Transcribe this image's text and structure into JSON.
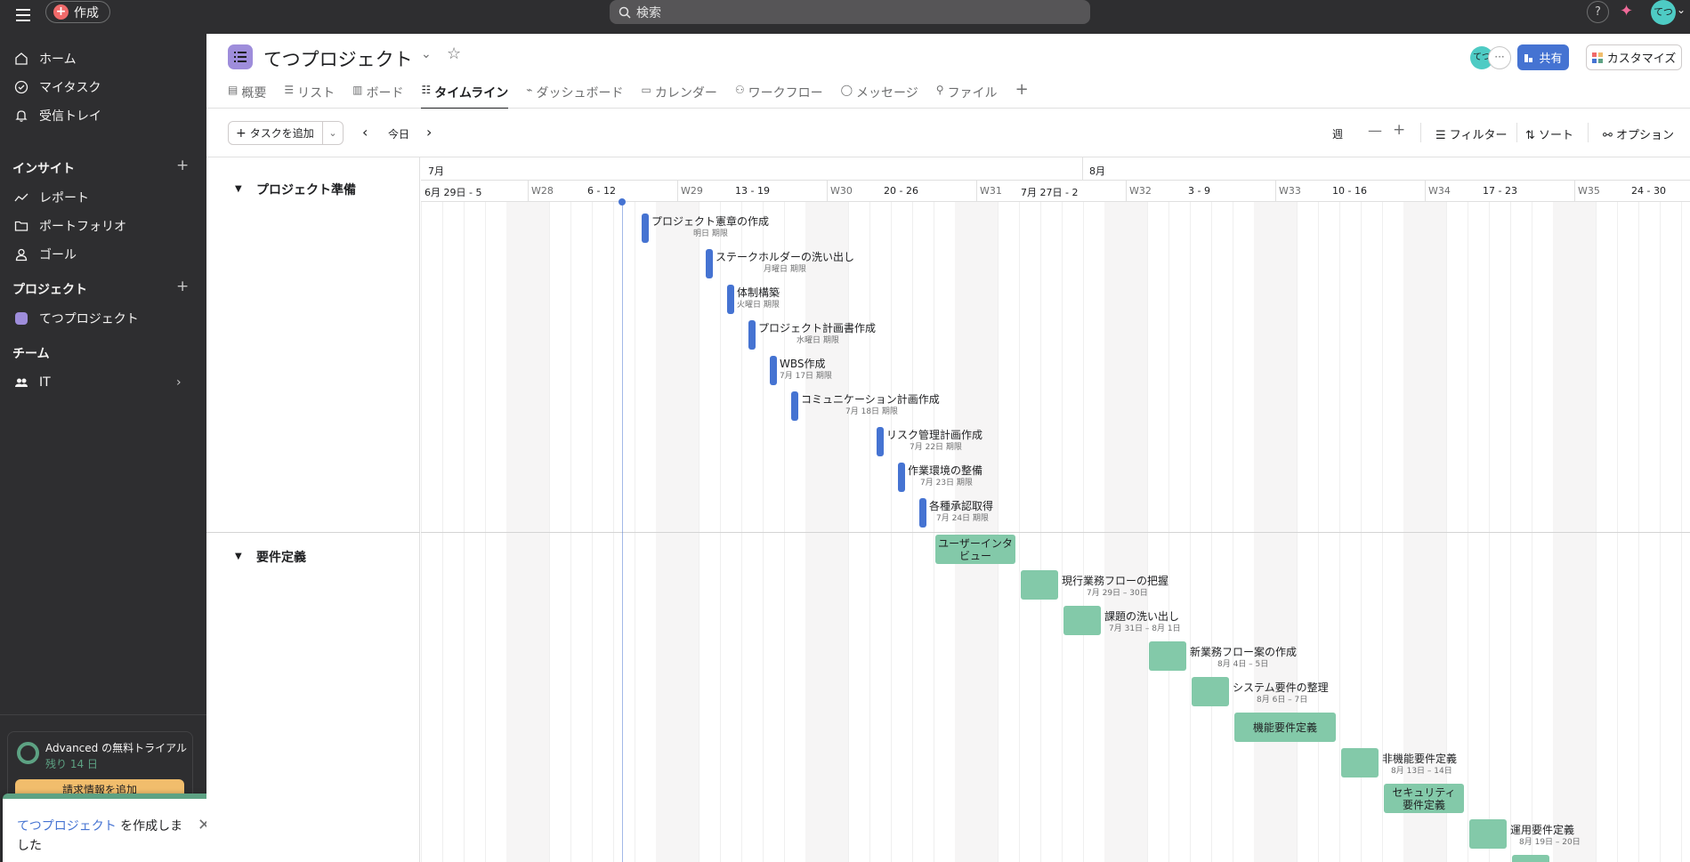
{
  "topbar": {
    "create_label": "作成",
    "search_label": "検索",
    "help_label": "?",
    "avatar_initials": "てつ"
  },
  "sidebar": {
    "home": "ホーム",
    "my_tasks": "マイタスク",
    "inbox": "受信トレイ",
    "insights_title": "インサイト",
    "reports": "レポート",
    "portfolios": "ポートフォリオ",
    "goals": "ゴール",
    "projects_title": "プロジェクト",
    "project_item": "てつプロジェクト",
    "team_title": "チーム",
    "team_item": "IT",
    "trial_title": "Advanced の無料トライアル",
    "trial_days": "残り 14 日",
    "trial_button": "請求情報を追加"
  },
  "toast": {
    "link_text": "てつプロジェクト",
    "text": " を作成しました"
  },
  "header": {
    "project_title": "てつプロジェクト",
    "tabs": [
      {
        "label": "概要",
        "icon": "overview-icon"
      },
      {
        "label": "リスト",
        "icon": "list-icon"
      },
      {
        "label": "ボード",
        "icon": "board-icon"
      },
      {
        "label": "タイムライン",
        "icon": "timeline-icon"
      },
      {
        "label": "ダッシュボード",
        "icon": "dashboard-icon"
      },
      {
        "label": "カレンダー",
        "icon": "calendar-icon"
      },
      {
        "label": "ワークフロー",
        "icon": "workflow-icon"
      },
      {
        "label": "メッセージ",
        "icon": "message-icon"
      },
      {
        "label": "ファイル",
        "icon": "file-icon"
      }
    ],
    "active_tab": "タイムライン",
    "avatar_initials": "てつ",
    "more_label": "···",
    "share_label": "共有",
    "customize_label": "カスタマイズ"
  },
  "toolbar": {
    "add_task_label": "タスクを追加",
    "today_label": "今日",
    "zoom_label": "週",
    "filter_label": "フィルター",
    "sort_label": "ソート",
    "options_label": "オプション"
  },
  "timeline": {
    "months": [
      "7月",
      "8月"
    ],
    "weeks": [
      "6月 29日 - 5",
      "W28",
      "6 - 12",
      "W29",
      "13 - 19",
      "W30",
      "20 - 26",
      "W31",
      "7月 27日 - 2",
      "W32",
      "3 - 9",
      "W33",
      "10 - 16",
      "W34",
      "17 - 23",
      "W35",
      "24 - 30"
    ]
  },
  "sections": [
    {
      "name": "プロジェクト準備",
      "tasks": [
        {
          "title": "プロジェクト憲章の作成",
          "date": "明日 期限"
        },
        {
          "title": "ステークホルダーの洗い出し",
          "date": "月曜日 期限"
        },
        {
          "title": "体制構築",
          "date": "火曜日 期限"
        },
        {
          "title": "プロジェクト計画書作成",
          "date": "水曜日 期限"
        },
        {
          "title": "WBS作成",
          "date": "7月 17日 期限"
        },
        {
          "title": "コミュニケーション計画作成",
          "date": "7月 18日 期限"
        },
        {
          "title": "リスク管理計画作成",
          "date": "7月 22日 期限"
        },
        {
          "title": "作業環境の整備",
          "date": "7月 23日 期限"
        },
        {
          "title": "各種承認取得",
          "date": "7月 24日 期限"
        }
      ]
    },
    {
      "name": "要件定義",
      "tasks": [
        {
          "title": "ユーザーインタビュー",
          "date": ""
        },
        {
          "title": "現行業務フローの把握",
          "date": "7月 29日 – 30日"
        },
        {
          "title": "課題の洗い出し",
          "date": "7月 31日 – 8月 1日"
        },
        {
          "title": "新業務フロー案の作成",
          "date": "8月 4日 – 5日"
        },
        {
          "title": "システム要件の整理",
          "date": "8月 6日 – 7日"
        },
        {
          "title": "機能要件定義",
          "date": ""
        },
        {
          "title": "非機能要件定義",
          "date": "8月 13日 – 14日"
        },
        {
          "title": "セキュリティ要件定義",
          "date": ""
        },
        {
          "title": "運用要件定義",
          "date": "8月 19日 – 20日"
        }
      ]
    }
  ],
  "colors": {
    "milestone": "#4573d2",
    "task_bar": "#83c9a9",
    "sidebar_bg": "#2e2e30",
    "brand": "#f06a6a",
    "project": "#9e8ddb"
  }
}
